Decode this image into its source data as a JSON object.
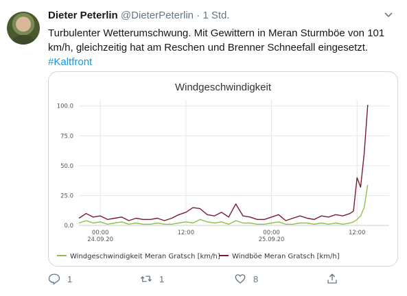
{
  "tweet": {
    "author_name": "Dieter Peterlin",
    "handle": "@DieterPeterlin",
    "separator": "·",
    "time": "1 Std.",
    "text": "Turbulenter Wetterumschwung. Mit Gewittern in Meran Sturmböe von 101 km/h, gleichzeitig hat am Reschen und Brenner Schneefall eingesetzt.",
    "hashtag": "#Kaltfront"
  },
  "actions": {
    "reply_count": "1",
    "retweet_count": "1",
    "like_count": "8"
  },
  "icons": {
    "menu": "chevron-down-icon",
    "reply": "reply-icon",
    "retweet": "retweet-icon",
    "like": "heart-icon",
    "share": "share-icon"
  },
  "chart_data": {
    "type": "line",
    "title": "Windgeschwindigkeit",
    "x_ticks": [
      {
        "label": "00:00",
        "sublabel": "24.09.20",
        "t": 0
      },
      {
        "label": "12:00",
        "sublabel": "",
        "t": 12
      },
      {
        "label": "00:00",
        "sublabel": "25.09.20",
        "t": 24
      },
      {
        "label": "12:00",
        "sublabel": "",
        "t": 36
      }
    ],
    "xlim": [
      -3,
      40.5
    ],
    "ylim": [
      0,
      105
    ],
    "y_ticks": [
      "0.0",
      "25.0",
      "50.0",
      "75.0",
      "100.0"
    ],
    "grid": true,
    "legend_position": "bottom",
    "series": [
      {
        "name": "Windgeschwindigkeit Meran Gratsch [km/h]",
        "color": "#8fbf4a",
        "t": [
          -3,
          -2,
          -1,
          0,
          1,
          2,
          3,
          4,
          5,
          6,
          7,
          8,
          9,
          10,
          11,
          12,
          13,
          14,
          15,
          16,
          17,
          18,
          19,
          20,
          21,
          22,
          23,
          24,
          25,
          26,
          27,
          28,
          29,
          30,
          31,
          32,
          33,
          34,
          35,
          35.5,
          36,
          36.5,
          37,
          37.5
        ],
        "values": [
          2,
          4,
          2,
          3,
          1,
          2,
          3,
          1,
          2,
          1,
          1,
          2,
          1,
          1,
          2,
          3,
          2,
          5,
          3,
          2,
          3,
          1,
          4,
          2,
          2,
          1,
          1,
          2,
          3,
          1,
          1,
          2,
          2,
          1,
          2,
          1,
          2,
          1,
          2,
          3,
          5,
          8,
          15,
          34
        ]
      },
      {
        "name": "Windböe Meran Gratsch [km/h]",
        "color": "#7a1a2a",
        "t": [
          -3,
          -2,
          -1,
          0,
          1,
          2,
          3,
          4,
          5,
          6,
          7,
          8,
          9,
          10,
          11,
          12,
          13,
          14,
          15,
          16,
          17,
          18,
          19,
          20,
          21,
          22,
          23,
          24,
          25,
          26,
          27,
          28,
          29,
          30,
          31,
          32,
          33,
          34,
          35,
          35.5,
          36,
          36.5,
          37,
          37.5
        ],
        "values": [
          6,
          10,
          7,
          8,
          5,
          6,
          7,
          4,
          6,
          5,
          5,
          6,
          4,
          6,
          9,
          11,
          15,
          14,
          9,
          8,
          11,
          7,
          18,
          8,
          7,
          5,
          5,
          7,
          9,
          4,
          6,
          8,
          6,
          5,
          8,
          7,
          9,
          8,
          10,
          12,
          40,
          32,
          60,
          101
        ]
      }
    ]
  }
}
